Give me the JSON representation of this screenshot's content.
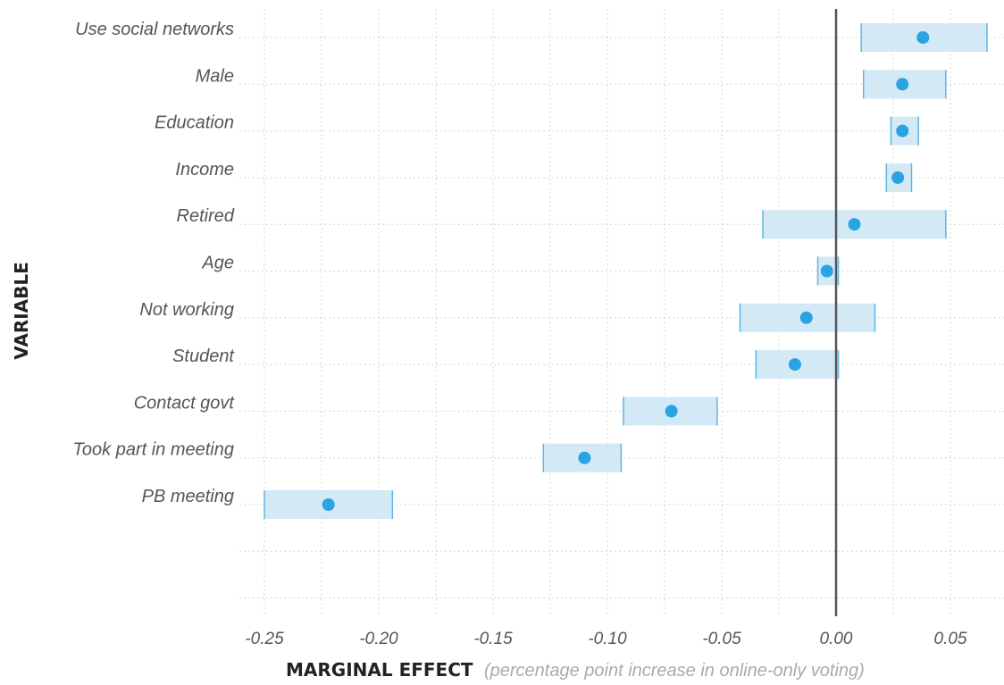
{
  "chart_data": {
    "type": "dot-range",
    "orientation": "horizontal",
    "xlabel": "MARGINAL EFFECT",
    "xlabel_note": "(percentage point increase in online-only voting)",
    "ylabel": "VARIABLE",
    "xlim": [
      -0.26,
      0.065
    ],
    "xticks": [
      -0.25,
      -0.2,
      -0.15,
      -0.1,
      -0.05,
      0.0,
      0.05
    ],
    "xtick_labels": [
      "-0.25",
      "-0.20",
      "-0.15",
      "-0.10",
      "-0.05",
      "0.00",
      "0.05"
    ],
    "reference_line_x": 0,
    "grid": true,
    "colors": {
      "point": "#29a3e1",
      "interval_fill": "#d3e9f6",
      "interval_edge": "#5fb6e3",
      "zero_line": "#555555",
      "grid": "#d4d4d4"
    },
    "categories": [
      "Use social networks",
      "Male",
      "Education",
      "Income",
      "Retired",
      "Age",
      "Not working",
      "Student",
      "Contact govt",
      "Took part in meeting",
      "PB meeting"
    ],
    "estimates": [
      0.038,
      0.029,
      0.029,
      0.027,
      0.008,
      -0.004,
      -0.013,
      -0.018,
      -0.072,
      -0.11,
      -0.222
    ],
    "ci_low": [
      0.011,
      0.012,
      0.024,
      0.022,
      -0.032,
      -0.008,
      -0.042,
      -0.035,
      -0.093,
      -0.128,
      -0.25
    ],
    "ci_high": [
      0.066,
      0.048,
      0.036,
      0.033,
      0.048,
      0.001,
      0.017,
      0.001,
      -0.052,
      -0.094,
      -0.194
    ]
  }
}
